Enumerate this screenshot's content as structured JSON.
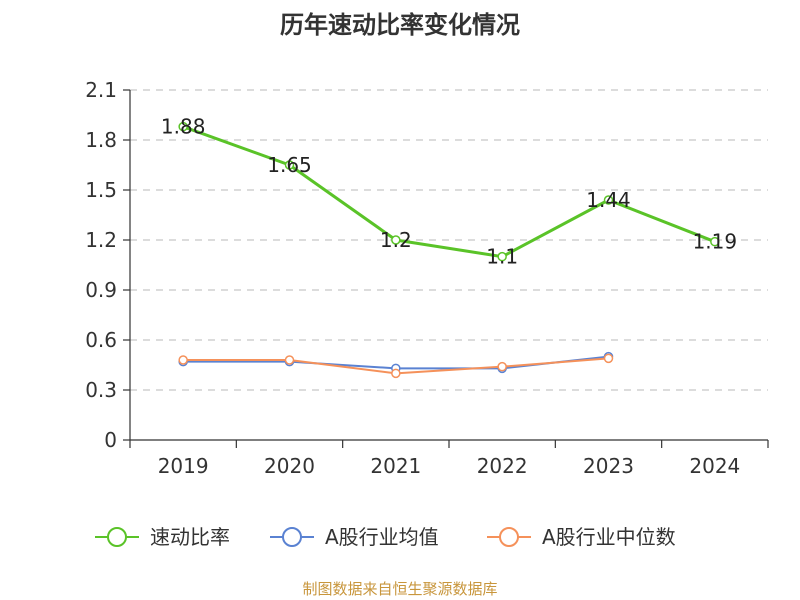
{
  "chart_data": {
    "type": "line",
    "title": "历年速动比率变化情况",
    "categories": [
      "2019",
      "2020",
      "2021",
      "2022",
      "2023",
      "2024"
    ],
    "ylim": [
      0,
      2.1
    ],
    "yticks": [
      "0",
      "0.3",
      "0.6",
      "0.9",
      "1.2",
      "1.5",
      "1.8",
      "2.1"
    ],
    "grid": true,
    "legend_position": "bottom",
    "series": [
      {
        "name": "速动比率",
        "color": "#5ac328",
        "values": [
          1.88,
          1.65,
          1.2,
          1.1,
          1.44,
          1.19
        ],
        "labels": [
          "1.88",
          "1.65",
          "1.2",
          "1.1",
          "1.44",
          "1.19"
        ]
      },
      {
        "name": "A股行业均值",
        "color": "#5a82d2",
        "values": [
          0.47,
          0.47,
          0.43,
          0.43,
          0.5,
          null
        ]
      },
      {
        "name": "A股行业中位数",
        "color": "#f5915a",
        "values": [
          0.48,
          0.48,
          0.4,
          0.44,
          0.49,
          null
        ]
      }
    ],
    "source": "制图数据来自恒生聚源数据库"
  }
}
